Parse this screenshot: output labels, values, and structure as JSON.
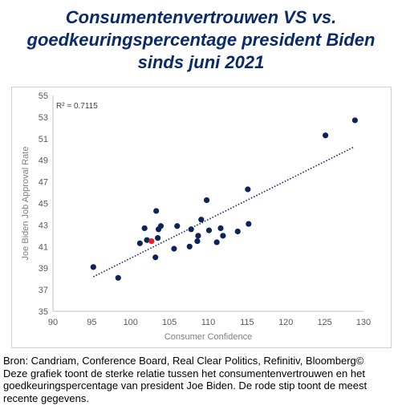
{
  "title_lines": [
    "Consumentenvertrouwen VS vs.",
    "goedkeuringspercentage president Biden",
    "sinds juni 2021"
  ],
  "caption_lines": [
    "Bron: Candriam, Conference Board, Real Clear Politics, Refinitiv, Bloomberg©",
    "Deze grafiek toont de sterke relatie tussen het consumentenvertrouwen en het",
    "goedkeuringspercentage van president Joe Biden. De rode stip toont de meest",
    "recente gegevens."
  ],
  "colors": {
    "title": "#0b2a6b",
    "point": "#0d2456",
    "highlight": "#e8202a",
    "trend": "#1a2a7a"
  },
  "chart_data": {
    "type": "scatter",
    "xlabel": "Consumer Confidence",
    "ylabel": "Joe Biden Job Approval Rate",
    "xlim": [
      90,
      130
    ],
    "ylim": [
      35,
      55
    ],
    "xticks": [
      90,
      95,
      100,
      105,
      110,
      115,
      120,
      125,
      130
    ],
    "yticks": [
      35,
      37,
      39,
      41,
      43,
      45,
      47,
      49,
      51,
      53,
      55
    ],
    "annotation": "R² = 0.7115",
    "grid": false,
    "points": [
      {
        "x": 95.2,
        "y": 39.1
      },
      {
        "x": 98.4,
        "y": 38.1
      },
      {
        "x": 101.2,
        "y": 41.3
      },
      {
        "x": 101.8,
        "y": 42.7
      },
      {
        "x": 102.1,
        "y": 41.6
      },
      {
        "x": 102.7,
        "y": 41.5,
        "highlight": true
      },
      {
        "x": 103.2,
        "y": 40.0
      },
      {
        "x": 103.3,
        "y": 44.3
      },
      {
        "x": 103.5,
        "y": 41.8
      },
      {
        "x": 103.6,
        "y": 42.6
      },
      {
        "x": 103.9,
        "y": 42.9
      },
      {
        "x": 105.6,
        "y": 40.8
      },
      {
        "x": 106.0,
        "y": 42.9
      },
      {
        "x": 107.6,
        "y": 41.0
      },
      {
        "x": 107.8,
        "y": 42.6
      },
      {
        "x": 108.6,
        "y": 41.5
      },
      {
        "x": 108.7,
        "y": 42.0
      },
      {
        "x": 109.1,
        "y": 43.5
      },
      {
        "x": 109.8,
        "y": 45.3
      },
      {
        "x": 110.1,
        "y": 42.5
      },
      {
        "x": 111.1,
        "y": 41.4
      },
      {
        "x": 111.6,
        "y": 42.7
      },
      {
        "x": 111.9,
        "y": 42.0
      },
      {
        "x": 113.8,
        "y": 42.4
      },
      {
        "x": 115.1,
        "y": 46.3
      },
      {
        "x": 115.2,
        "y": 43.1
      },
      {
        "x": 125.1,
        "y": 51.3
      },
      {
        "x": 128.9,
        "y": 52.7
      }
    ],
    "trendline": [
      {
        "x": 95.2,
        "y": 38.2
      },
      {
        "x": 128.7,
        "y": 50.2
      }
    ]
  }
}
